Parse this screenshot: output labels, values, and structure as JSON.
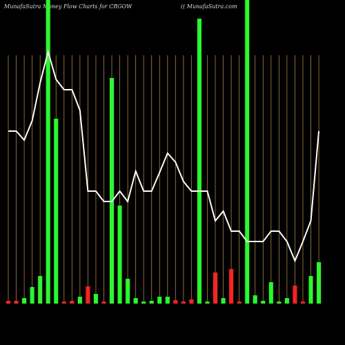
{
  "chart_data": {
    "type": "bar",
    "title": "MunafaSutra  Money Flow  Charts for CRGOW",
    "subtitle": "(( MunafaSutra.com",
    "categories": [
      null,
      null,
      null,
      null,
      null,
      null,
      null,
      null,
      null,
      null,
      null,
      null,
      null,
      null,
      null,
      null,
      null,
      null,
      null,
      null,
      null,
      null,
      null,
      null,
      null,
      null,
      null,
      null,
      null,
      null,
      null,
      null,
      null,
      null,
      null,
      null,
      null,
      null,
      null,
      null
    ],
    "series": [
      {
        "type": "bar",
        "values": [
          4,
          4,
          8,
          24,
          40,
          440,
          268,
          3,
          4,
          10,
          25,
          14,
          3,
          327,
          142,
          36,
          8,
          3,
          4,
          10,
          10,
          5,
          3,
          6,
          413,
          3,
          45,
          8,
          50,
          3,
          440,
          12,
          4,
          31,
          3,
          8,
          26,
          3,
          40,
          60
        ],
        "colors": [
          "#ff2020",
          "#ff2020",
          "#22ff22",
          "#22ff22",
          "#22ff22",
          "#22ff22",
          "#22ff22",
          "#ff2020",
          "#ff2020",
          "#22ff22",
          "#ff2020",
          "#22ff22",
          "#ff2020",
          "#22ff22",
          "#22ff22",
          "#22ff22",
          "#22ff22",
          "#22ff22",
          "#22ff22",
          "#22ff22",
          "#22ff22",
          "#ff2020",
          "#ff2020",
          "#ff2020",
          "#22ff22",
          "#22ff22",
          "#ff2020",
          "#22ff22",
          "#ff2020",
          "#ff2020",
          "#22ff22",
          "#22ff22",
          "#22ff22",
          "#22ff22",
          "#22ff22",
          "#22ff22",
          "#ff2020",
          "#ff2020",
          "#22ff22",
          "#22ff22"
        ]
      },
      {
        "type": "line",
        "color": "#ffffff",
        "values": [
          250,
          250,
          237,
          265,
          320,
          365,
          325,
          310,
          310,
          280,
          163,
          163,
          148,
          148,
          163,
          148,
          192,
          163,
          163,
          190,
          218,
          205,
          177,
          163,
          163,
          163,
          120,
          134,
          105,
          105,
          90,
          90,
          90,
          105,
          105,
          90,
          62,
          90,
          120,
          250
        ]
      }
    ],
    "ylim": [
      0,
      440
    ],
    "grid_color": "#b8860b"
  }
}
